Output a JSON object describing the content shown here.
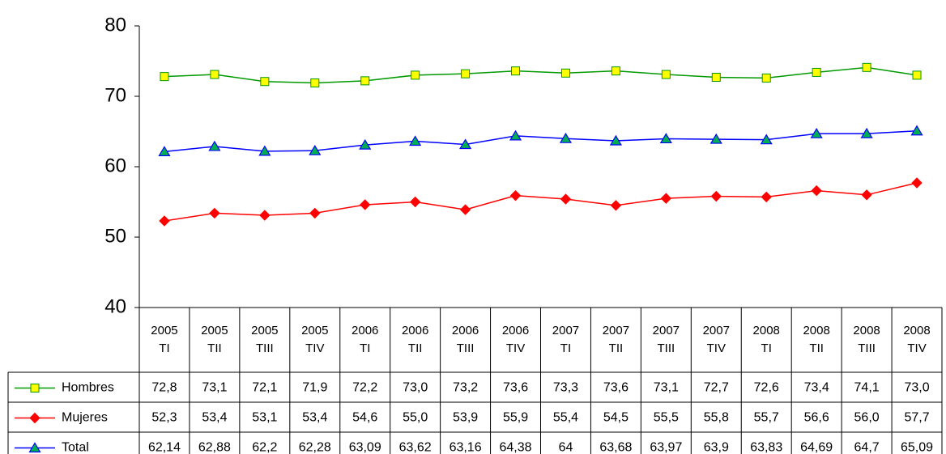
{
  "chart_data": {
    "type": "line",
    "categories": [
      "2005 TI",
      "2005 TII",
      "2005 TIII",
      "2005 TIV",
      "2006 TI",
      "2006 TII",
      "2006 TIII",
      "2006 TIV",
      "2007 TI",
      "2007 TII",
      "2007 TIII",
      "2007 TIV",
      "2008 TI",
      "2008 TII",
      "2008 TIII",
      "2008 TIV"
    ],
    "series": [
      {
        "name": "Hombres",
        "color": "#009900",
        "marker": "square",
        "marker_fill": "#ffff00",
        "values": [
          72.8,
          73.1,
          72.1,
          71.9,
          72.2,
          73.0,
          73.2,
          73.6,
          73.3,
          73.6,
          73.1,
          72.7,
          72.6,
          73.4,
          74.1,
          73.0
        ],
        "value_labels": [
          "72,8",
          "73,1",
          "72,1",
          "71,9",
          "72,2",
          "73,0",
          "73,2",
          "73,6",
          "73,3",
          "73,6",
          "73,1",
          "72,7",
          "72,6",
          "73,4",
          "74,1",
          "73,0"
        ]
      },
      {
        "name": "Mujeres",
        "color": "#ff0000",
        "marker": "diamond",
        "marker_fill": "#ff0000",
        "values": [
          52.3,
          53.4,
          53.1,
          53.4,
          54.6,
          55.0,
          53.9,
          55.9,
          55.4,
          54.5,
          55.5,
          55.8,
          55.7,
          56.6,
          56.0,
          57.7
        ],
        "value_labels": [
          "52,3",
          "53,4",
          "53,1",
          "53,4",
          "54,6",
          "55,0",
          "53,9",
          "55,9",
          "55,4",
          "54,5",
          "55,5",
          "55,8",
          "55,7",
          "56,6",
          "56,0",
          "57,7"
        ]
      },
      {
        "name": "Total",
        "color": "#0000ff",
        "marker": "triangle",
        "marker_fill": "#00b050",
        "values": [
          62.14,
          62.88,
          62.2,
          62.28,
          63.09,
          63.62,
          63.16,
          64.38,
          64,
          63.68,
          63.97,
          63.9,
          63.83,
          64.69,
          64.7,
          65.09
        ],
        "value_labels": [
          "62,14",
          "62,88",
          "62,2",
          "62,28",
          "63,09",
          "63,62",
          "63,16",
          "64,38",
          "64",
          "63,68",
          "63,97",
          "63,9",
          "63,83",
          "64,69",
          "64,7",
          "65,09"
        ]
      }
    ],
    "ylim": [
      40,
      80
    ],
    "yticks": [
      40,
      50,
      60,
      70,
      80
    ],
    "grid": false
  }
}
